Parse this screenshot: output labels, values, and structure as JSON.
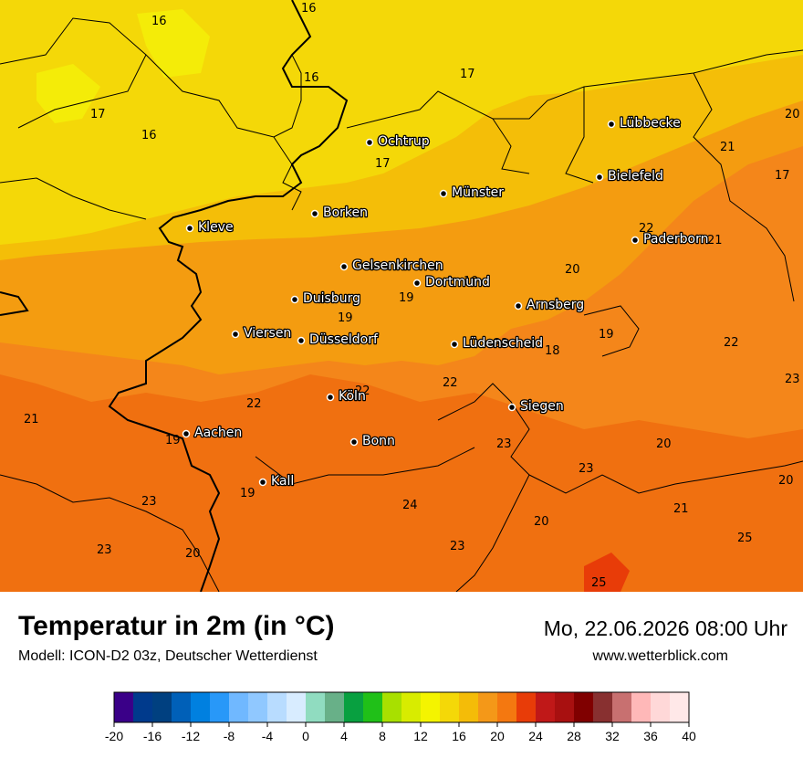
{
  "title": "Temperatur in 2m (in °C)",
  "model": "Modell: ICON-D2 03z, Deutscher Wetterdienst",
  "datetime": "Mo, 22.06.2026 08:00 Uhr",
  "website": "www.wetterblick.com",
  "cities": [
    {
      "name": "Lübbecke"
    },
    {
      "name": "Ochtrup"
    },
    {
      "name": "Bielefeld"
    },
    {
      "name": "Münster"
    },
    {
      "name": "Kleve"
    },
    {
      "name": "Borken"
    },
    {
      "name": "Paderborn"
    },
    {
      "name": "Gelsenkirchen"
    },
    {
      "name": "Dortmund"
    },
    {
      "name": "Duisburg"
    },
    {
      "name": "Arnsberg"
    },
    {
      "name": "Viersen"
    },
    {
      "name": "Düsseldorf"
    },
    {
      "name": "Lüdenscheid"
    },
    {
      "name": "Köln"
    },
    {
      "name": "Siegen"
    },
    {
      "name": "Aachen"
    },
    {
      "name": "Bonn"
    },
    {
      "name": "Kall"
    }
  ],
  "isotherm_labels": [
    {
      "text": "16"
    },
    {
      "text": "16"
    },
    {
      "text": "16"
    },
    {
      "text": "17"
    },
    {
      "text": "17"
    },
    {
      "text": "16"
    },
    {
      "text": "17"
    },
    {
      "text": "20"
    },
    {
      "text": "21"
    },
    {
      "text": "17"
    },
    {
      "text": "22"
    },
    {
      "text": "21"
    },
    {
      "text": "20"
    },
    {
      "text": "19"
    },
    {
      "text": "19"
    },
    {
      "text": "19"
    },
    {
      "text": "19"
    },
    {
      "text": "22"
    },
    {
      "text": "18"
    },
    {
      "text": "22"
    },
    {
      "text": "23"
    },
    {
      "text": "22"
    },
    {
      "text": "22"
    },
    {
      "text": "22"
    },
    {
      "text": "21"
    },
    {
      "text": "19"
    },
    {
      "text": "23"
    },
    {
      "text": "20"
    },
    {
      "text": "23"
    },
    {
      "text": "20"
    },
    {
      "text": "19"
    },
    {
      "text": "23"
    },
    {
      "text": "24"
    },
    {
      "text": "20"
    },
    {
      "text": "21"
    },
    {
      "text": "23"
    },
    {
      "text": "20"
    },
    {
      "text": "23"
    },
    {
      "text": "25"
    },
    {
      "text": "25"
    }
  ],
  "color_scale": {
    "ticks": [
      "-20",
      "-16",
      "-12",
      "-8",
      "-4",
      "0",
      "4",
      "8",
      "12",
      "16",
      "20",
      "24",
      "28",
      "32",
      "36",
      "40"
    ],
    "colors": [
      "#3a0088",
      "#003a8c",
      "#004080",
      "#0060b8",
      "#0080e0",
      "#2898f8",
      "#70b8ff",
      "#90c8ff",
      "#b8dcff",
      "#d8ecff",
      "#90dcc0",
      "#68b088",
      "#08a040",
      "#20c018",
      "#a8e000",
      "#d8ec00",
      "#f4f400",
      "#f4d808",
      "#f4bc08",
      "#f49818",
      "#f47810",
      "#e83c08",
      "#c01818",
      "#a81010",
      "#800000",
      "#883030",
      "#c87070",
      "#ffb8b8",
      "#ffd8d8",
      "#ffe8e8"
    ]
  }
}
